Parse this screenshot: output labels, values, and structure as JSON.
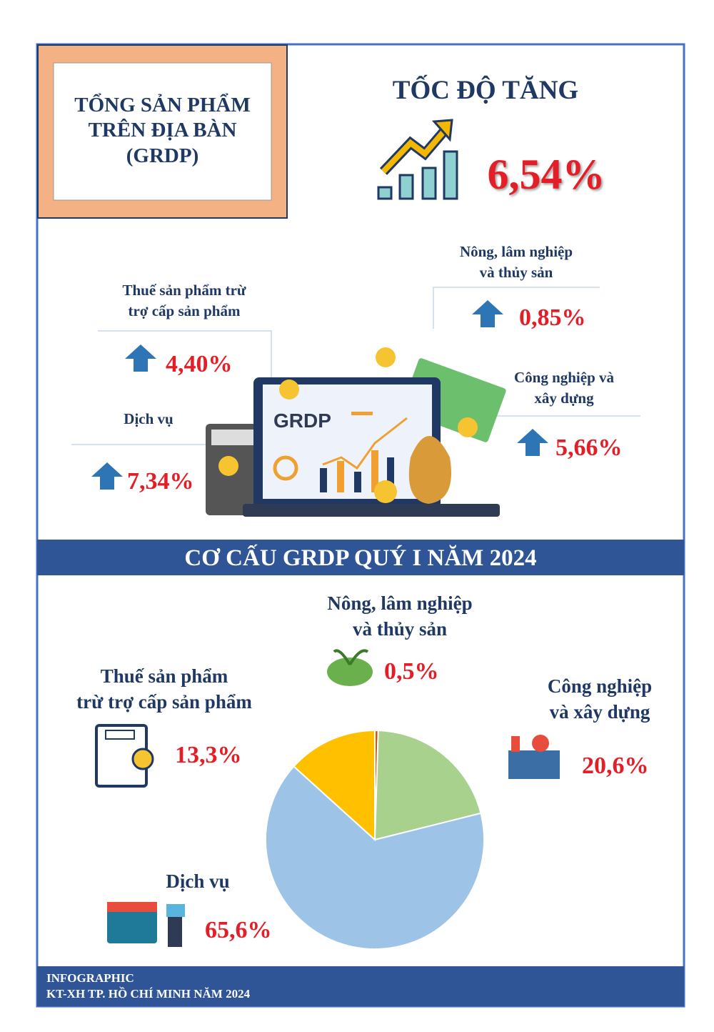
{
  "header": {
    "title": "TỔNG SẢN PHẨM\nTRÊN ĐỊA BÀN\n(GRDP)"
  },
  "growth": {
    "title": "TỐC ĐỘ TĂNG",
    "value": "6,54%",
    "sectors": [
      {
        "label": "Thuế sản phẩm trừ\ntrợ cấp sản phẩm",
        "value": "4,40%"
      },
      {
        "label": "Nông, lâm nghiệp\nvà thủy sản",
        "value": "0,85%"
      },
      {
        "label": "Công nghiệp và\nxây dựng",
        "value": "5,66%"
      },
      {
        "label": "Dịch vụ",
        "value": "7,34%"
      }
    ]
  },
  "illustration": {
    "screen_text": "GRDP"
  },
  "chart_data": {
    "type": "pie",
    "title": "CƠ CẤU GRDP QUÝ I NĂM 2024",
    "categories": [
      "Nông, lâm nghiệp\nvà thủy sản",
      "Công nghiệp\nvà xây dựng",
      "Dịch vụ",
      "Thuế sản phẩm\ntrừ trợ cấp sản phẩm"
    ],
    "values": [
      0.5,
      20.6,
      65.6,
      13.3
    ],
    "value_labels": [
      "0,5%",
      "20,6%",
      "65,6%",
      "13,3%"
    ],
    "colors": [
      "#c55a11",
      "#a9d18e",
      "#9dc3e6",
      "#ffc000"
    ]
  },
  "footer": {
    "lines": [
      "INFOGRAPHIC",
      "KT-XH TP. HỒ CHÍ MINH NĂM 2024"
    ]
  }
}
